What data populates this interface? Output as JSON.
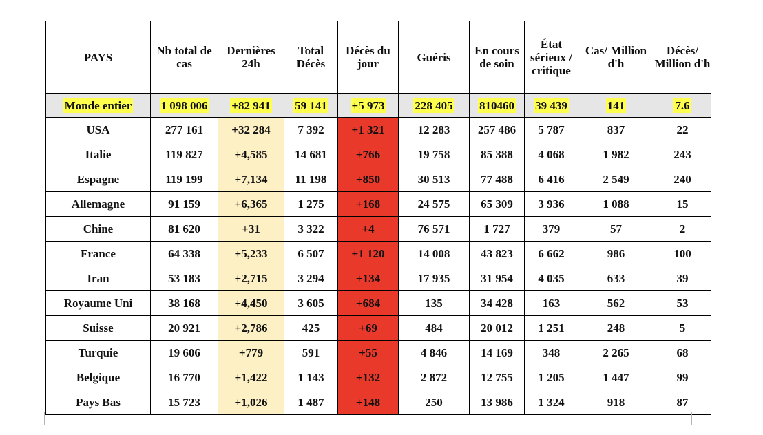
{
  "headers": [
    "PAYS",
    "Nb total de cas",
    "Dernières 24h",
    "Total Décès",
    "Décès du jour",
    "Guéris",
    "En cours de soin",
    "État sérieux / critique",
    "Cas/ Million d'h",
    "Décès/ Million d'h"
  ],
  "world": [
    "Monde entier",
    "1 098 006",
    "+82 941",
    "59 141",
    "+5 973",
    "228 405",
    "810460",
    "39 439",
    "141",
    "7.6"
  ],
  "rows": [
    [
      "USA",
      "277 161",
      "+32 284",
      "7 392",
      "+1 321",
      "12 283",
      "257 486",
      "5 787",
      "837",
      "22"
    ],
    [
      "Italie",
      "119 827",
      "+4,585",
      "14 681",
      "+766",
      "19 758",
      "85 388",
      "4 068",
      "1 982",
      "243"
    ],
    [
      "Espagne",
      "119 199",
      "+7,134",
      "11 198",
      "+850",
      "30 513",
      "77 488",
      "6 416",
      "2 549",
      "240"
    ],
    [
      "Allemagne",
      "91 159",
      "+6,365",
      "1 275",
      "+168",
      "24 575",
      "65 309",
      "3 936",
      "1 088",
      "15"
    ],
    [
      "Chine",
      "81 620",
      "+31",
      "3 322",
      "+4",
      "76 571",
      "1 727",
      "379",
      "57",
      "2"
    ],
    [
      "France",
      "64 338",
      "+5,233",
      "6 507",
      "+1 120",
      "14 008",
      "43 823",
      "6 662",
      "986",
      "100"
    ],
    [
      "Iran",
      "53 183",
      "+2,715",
      "3 294",
      "+134",
      "17 935",
      "31 954",
      "4 035",
      "633",
      "39"
    ],
    [
      "Royaume Uni",
      "38 168",
      "+4,450",
      "3 605",
      "+684",
      "135",
      "34 428",
      "163",
      "562",
      "53"
    ],
    [
      "Suisse",
      "20 921",
      "+2,786",
      "425",
      "+69",
      "484",
      "20 012",
      "1 251",
      "248",
      "5"
    ],
    [
      "Turquie",
      "19 606",
      "+779",
      "591",
      "+55",
      "4 846",
      "14 169",
      "348",
      "2 265",
      "68"
    ],
    [
      "Belgique",
      "16 770",
      "+1,422",
      "1 143",
      "+132",
      "2 872",
      "12 755",
      "1 205",
      "1 447",
      "99"
    ],
    [
      "Pays Bas",
      "15 723",
      "+1,026",
      "1 487",
      "+148",
      "250",
      "13 986",
      "1 324",
      "918",
      "87"
    ]
  ],
  "colors": {
    "highlight": "#ffff4d",
    "last24": "#fdf0c4",
    "deaths_day": "#e8392a",
    "world_row": "#e6e6e6"
  }
}
